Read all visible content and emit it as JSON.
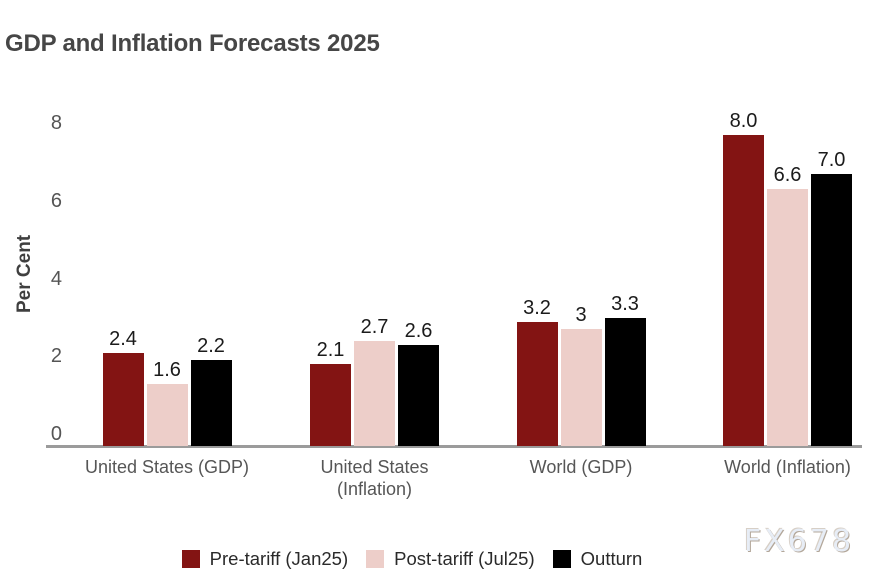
{
  "title": "GDP and Inflation Forecasts 2025",
  "watermark": "FX678",
  "chart_data": {
    "type": "bar",
    "title": "GDP and Inflation Forecasts 2025",
    "xlabel": "",
    "ylabel": "Per Cent",
    "ylim": [
      0,
      8
    ],
    "yticks": [
      0,
      2,
      4,
      6,
      8
    ],
    "grid": false,
    "legend_position": "bottom",
    "axis_color": "#9b9b9b",
    "categories": [
      "United States (GDP)",
      "United States\n(Inflation)",
      "World (GDP)",
      "World (Inflation)"
    ],
    "series": [
      {
        "name": "Pre-tariff (Jan25)",
        "color": "#831413",
        "values": [
          2.4,
          2.1,
          3.2,
          8.0
        ],
        "labels": [
          "2.4",
          "2.1",
          "3.2",
          "8.0"
        ]
      },
      {
        "name": "Post-tariff (Jul25)",
        "color": "#EDCEC9",
        "values": [
          1.6,
          2.7,
          3.0,
          6.6
        ],
        "labels": [
          "1.6",
          "2.7",
          "3",
          "6.6"
        ]
      },
      {
        "name": "Outturn",
        "color": "#000000",
        "values": [
          2.2,
          2.6,
          3.3,
          7.0
        ],
        "labels": [
          "2.2",
          "2.6",
          "3.3",
          "7.0"
        ]
      }
    ]
  }
}
